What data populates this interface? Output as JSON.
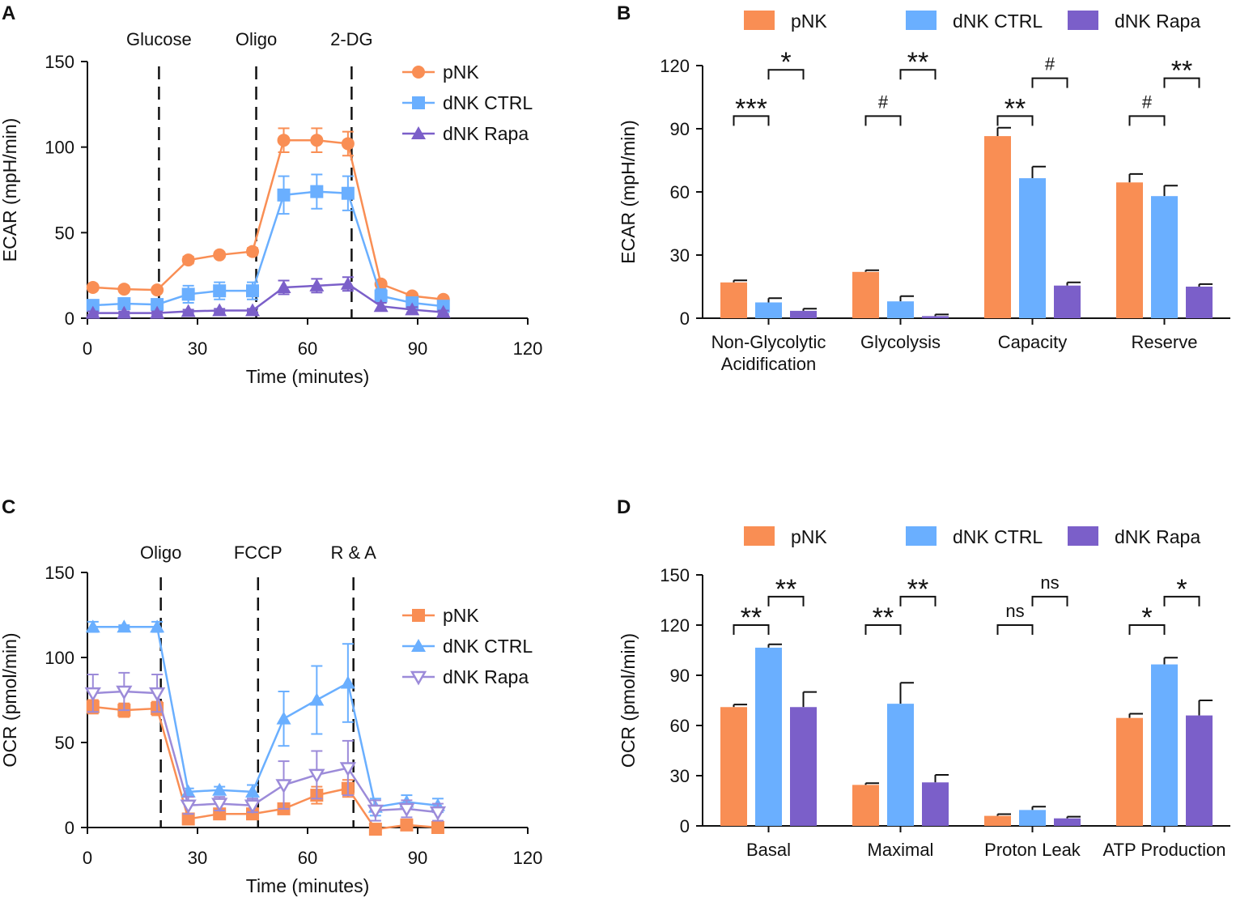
{
  "colors": {
    "pNK": "#f98e54",
    "dNK_CTRL": "#6aafff",
    "dNK_Rapa": "#7b5fc9",
    "dNK_Rapa_light": "#9c8bd9",
    "axis": "#111111"
  },
  "chart_data": [
    {
      "panel": "A",
      "type": "line",
      "xlabel": "Time (minutes)",
      "ylabel": "ECAR (mpH/min)",
      "xlim": [
        0,
        120
      ],
      "ylim": [
        0,
        150
      ],
      "xticks": [
        0,
        30,
        60,
        90,
        120
      ],
      "yticks": [
        0,
        50,
        100,
        150
      ],
      "injections": [
        {
          "label": "Glucose",
          "x": 19.5
        },
        {
          "label": "Oligo",
          "x": 46
        },
        {
          "label": "2-DG",
          "x": 72
        }
      ],
      "legend_position": "top-right",
      "x": [
        1.5,
        10,
        19,
        27.5,
        36,
        45,
        53.5,
        62.5,
        71,
        80,
        88.5,
        97
      ],
      "series": [
        {
          "name": "pNK",
          "color_key": "pNK",
          "marker": "circle",
          "values": [
            18,
            17,
            16.5,
            34,
            37,
            39,
            104,
            104,
            102,
            20,
            13,
            11
          ],
          "errors": [
            1,
            1,
            1,
            2,
            1.5,
            2,
            7,
            7,
            7,
            1.5,
            1.5,
            1
          ]
        },
        {
          "name": "dNK CTRL",
          "color_key": "dNK_CTRL",
          "marker": "square",
          "values": [
            7.5,
            8.5,
            8,
            14,
            16,
            16,
            72,
            74,
            73,
            13,
            9,
            7
          ],
          "errors": [
            2,
            2,
            2,
            5,
            5,
            5,
            11,
            10,
            10,
            4,
            3,
            2
          ]
        },
        {
          "name": "dNK Rapa",
          "color_key": "dNK_Rapa",
          "marker": "triangle",
          "values": [
            3,
            3,
            3,
            4,
            4.5,
            4.5,
            18,
            19,
            20,
            7,
            5,
            3.5
          ],
          "errors": [
            1,
            1,
            1,
            1,
            1,
            1,
            4,
            4,
            4,
            2,
            1.5,
            1
          ]
        }
      ]
    },
    {
      "panel": "B",
      "type": "bar",
      "ylabel": "ECAR (mpH/min)",
      "ylim": [
        0,
        120
      ],
      "yticks": [
        0,
        30,
        60,
        90,
        120
      ],
      "categories": [
        "Non-Glycolytic\nAcidification",
        "Glycolysis",
        "Capacity",
        "Reserve"
      ],
      "legend_position": "top",
      "series": [
        {
          "name": "pNK",
          "color_key": "pNK",
          "values": [
            17,
            22,
            86.5,
            64.5
          ],
          "errors": [
            1,
            0.8,
            4,
            4
          ]
        },
        {
          "name": "dNK CTRL",
          "color_key": "dNK_CTRL",
          "values": [
            7.5,
            8,
            66.5,
            58
          ],
          "errors": [
            2,
            2.5,
            5.5,
            5
          ]
        },
        {
          "name": "dNK Rapa",
          "color_key": "dNK_Rapa",
          "values": [
            3.5,
            1,
            15.5,
            15
          ],
          "errors": [
            1,
            0.8,
            1.5,
            1.2
          ]
        }
      ],
      "significance": [
        {
          "category": 0,
          "pair": "pNK-dNK CTRL",
          "label": "***",
          "y": 96
        },
        {
          "category": 0,
          "pair": "dNK CTRL-dNK Rapa",
          "label": "*",
          "y": 118
        },
        {
          "category": 1,
          "pair": "pNK-dNK CTRL",
          "label": "#",
          "y": 96
        },
        {
          "category": 1,
          "pair": "dNK CTRL-dNK Rapa",
          "label": "**",
          "y": 118
        },
        {
          "category": 2,
          "pair": "pNK-dNK CTRL",
          "label": "**",
          "y": 96
        },
        {
          "category": 2,
          "pair": "dNK CTRL-dNK Rapa",
          "label": "#",
          "y": 114
        },
        {
          "category": 3,
          "pair": "pNK-dNK CTRL",
          "label": "#",
          "y": 96
        },
        {
          "category": 3,
          "pair": "dNK CTRL-dNK Rapa",
          "label": "**",
          "y": 114
        }
      ]
    },
    {
      "panel": "C",
      "type": "line",
      "xlabel": "Time (minutes)",
      "ylabel": "OCR (pmol/min)",
      "xlim": [
        0,
        120
      ],
      "ylim": [
        0,
        150
      ],
      "xticks": [
        0,
        30,
        60,
        90,
        120
      ],
      "yticks": [
        0,
        50,
        100,
        150
      ],
      "injections": [
        {
          "label": "Oligo",
          "x": 20
        },
        {
          "label": "FCCP",
          "x": 46.5
        },
        {
          "label": "R & A",
          "x": 72.5
        }
      ],
      "legend_position": "right",
      "x": [
        1.5,
        10,
        19,
        27.5,
        36,
        45,
        53.5,
        62.5,
        71,
        78.5,
        87,
        95.5
      ],
      "series": [
        {
          "name": "pNK",
          "color_key": "pNK",
          "marker": "square",
          "values": [
            71,
            69,
            70,
            5,
            8,
            8,
            11,
            19,
            23,
            -1,
            1.5,
            0
          ],
          "errors": [
            4,
            4,
            4,
            2,
            2,
            2,
            3,
            5,
            5,
            1,
            1,
            1
          ]
        },
        {
          "name": "dNK CTRL",
          "color_key": "dNK_CTRL",
          "marker": "triangle",
          "values": [
            118,
            118,
            118,
            21,
            22,
            21,
            64,
            75,
            85,
            12,
            15,
            13
          ],
          "errors": [
            3,
            1,
            3,
            2,
            2,
            4,
            16,
            20,
            23,
            5,
            4,
            4
          ]
        },
        {
          "name": "dNK Rapa",
          "color_key": "dNK_Rapa_light",
          "marker": "triangle-down",
          "values": [
            79,
            80,
            79,
            13,
            14,
            13,
            25,
            31,
            35,
            10,
            11,
            9
          ],
          "errors": [
            11,
            11,
            11,
            5,
            4,
            4,
            14,
            14,
            16,
            6,
            5,
            5
          ]
        }
      ]
    },
    {
      "panel": "D",
      "type": "bar",
      "ylabel": "OCR (pmol/min)",
      "ylim": [
        0,
        150
      ],
      "yticks": [
        0,
        30,
        60,
        90,
        120,
        150
      ],
      "categories": [
        "Basal",
        "Maximal",
        "Proton Leak",
        "ATP Production"
      ],
      "legend_position": "top",
      "series": [
        {
          "name": "pNK",
          "color_key": "pNK",
          "values": [
            71,
            24.5,
            6,
            64.5
          ],
          "errors": [
            1.5,
            1,
            1,
            2.5
          ]
        },
        {
          "name": "dNK CTRL",
          "color_key": "dNK_CTRL",
          "values": [
            106.5,
            73,
            9.5,
            96.5
          ],
          "errors": [
            2,
            12.5,
            2,
            4
          ]
        },
        {
          "name": "dNK Rapa",
          "color_key": "dNK_Rapa",
          "values": [
            71,
            26,
            4.5,
            66
          ],
          "errors": [
            9,
            4.5,
            1,
            9
          ]
        }
      ],
      "significance": [
        {
          "category": 0,
          "pair": "pNK-dNK CTRL",
          "label": "**",
          "y": 120
        },
        {
          "category": 0,
          "pair": "dNK CTRL-dNK Rapa",
          "label": "**",
          "y": 137
        },
        {
          "category": 1,
          "pair": "pNK-dNK CTRL",
          "label": "**",
          "y": 120
        },
        {
          "category": 1,
          "pair": "dNK CTRL-dNK Rapa",
          "label": "**",
          "y": 137
        },
        {
          "category": 2,
          "pair": "pNK-dNK CTRL",
          "label": "ns",
          "y": 120
        },
        {
          "category": 2,
          "pair": "dNK CTRL-dNK Rapa",
          "label": "ns",
          "y": 137
        },
        {
          "category": 3,
          "pair": "pNK-dNK CTRL",
          "label": "*",
          "y": 120
        },
        {
          "category": 3,
          "pair": "dNK CTRL-dNK Rapa",
          "label": "*",
          "y": 137
        }
      ]
    }
  ]
}
